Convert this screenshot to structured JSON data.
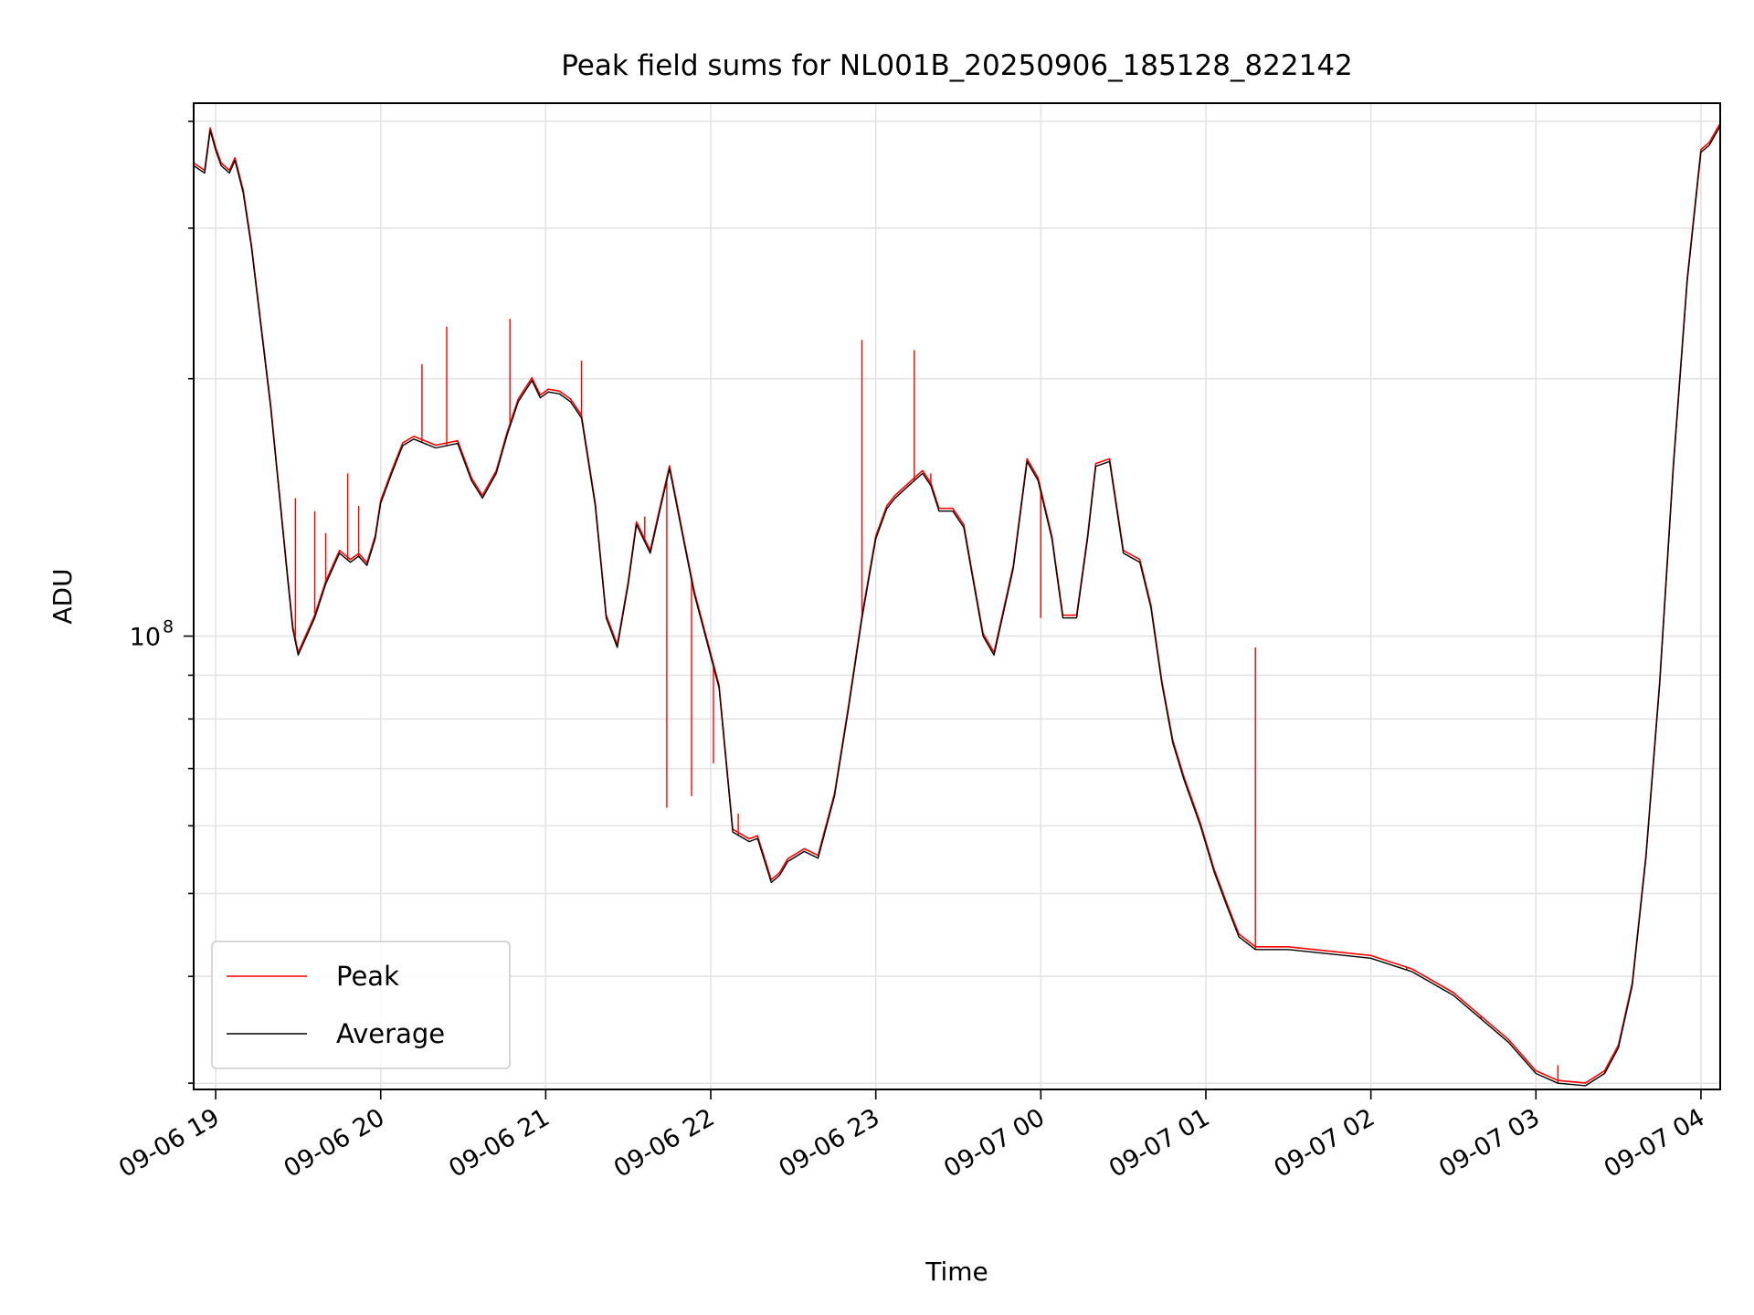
{
  "chart_data": {
    "type": "line",
    "title": "Peak field sums for NL001B_20250906_185128_822142",
    "xlabel": "Time",
    "ylabel": "ADU",
    "y_scale": "log",
    "x_range_hours": [
      "09-06 18:52",
      "09-07 04:07"
    ],
    "ylim": [
      29500000.0,
      420000000.0
    ],
    "x_ticks": [
      "09-06 19",
      "09-06 20",
      "09-06 21",
      "09-06 22",
      "09-06 23",
      "09-07 00",
      "09-07 01",
      "09-07 02",
      "09-07 03",
      "09-07 04"
    ],
    "y_major_ticks": [
      {
        "value": 100000000.0,
        "label_base": "10",
        "label_exp": "8"
      }
    ],
    "y_minor_ticks": [
      30000000.0,
      40000000.0,
      50000000.0,
      60000000.0,
      70000000.0,
      80000000.0,
      90000000.0,
      200000000.0,
      300000000.0,
      400000000.0
    ],
    "grid": true,
    "legend_position": "lower-left",
    "series": [
      {
        "name": "Peak",
        "color": "#ff0000",
        "note": "tracks Average with narrow upward spikes",
        "spikes": [
          {
            "x": "09-06 19:29",
            "y": 145000000.0
          },
          {
            "x": "09-06 19:36",
            "y": 140000000.0
          },
          {
            "x": "09-06 19:40",
            "y": 132000000.0
          },
          {
            "x": "09-06 19:48",
            "y": 155000000.0
          },
          {
            "x": "09-06 19:52",
            "y": 142000000.0
          },
          {
            "x": "09-06 20:15",
            "y": 208000000.0
          },
          {
            "x": "09-06 20:24",
            "y": 230000000.0
          },
          {
            "x": "09-06 20:47",
            "y": 235000000.0
          },
          {
            "x": "09-06 21:13",
            "y": 210000000.0
          },
          {
            "x": "09-06 21:36",
            "y": 138000000.0
          },
          {
            "x": "09-06 21:44",
            "y": 63000000.0
          },
          {
            "x": "09-06 21:53",
            "y": 65000000.0
          },
          {
            "x": "09-06 22:01",
            "y": 71000000.0
          },
          {
            "x": "09-06 22:10",
            "y": 62000000.0
          },
          {
            "x": "09-06 22:55",
            "y": 222000000.0
          },
          {
            "x": "09-06 23:14",
            "y": 216000000.0
          },
          {
            "x": "09-06 23:20",
            "y": 155000000.0
          },
          {
            "x": "09-07 00:00",
            "y": 105000000.0
          },
          {
            "x": "09-07 01:18",
            "y": 97000000.0
          },
          {
            "x": "09-07 01:31",
            "y": 43000000.0
          },
          {
            "x": "09-07 01:45",
            "y": 42500000.0
          },
          {
            "x": "09-07 02:13",
            "y": 41000000.0
          },
          {
            "x": "09-07 02:40",
            "y": 36000000.0
          },
          {
            "x": "09-07 03:08",
            "y": 31500000.0
          },
          {
            "x": "09-07 03:25",
            "y": 31000000.0
          }
        ]
      },
      {
        "name": "Average",
        "color": "#000000",
        "x": [
          "09-06 18:52",
          "09-06 18:56",
          "09-06 18:58",
          "09-06 19:00",
          "09-06 19:02",
          "09-06 19:05",
          "09-06 19:07",
          "09-06 19:10",
          "09-06 19:13",
          "09-06 19:20",
          "09-06 19:26",
          "09-06 19:28",
          "09-06 19:30",
          "09-06 19:36",
          "09-06 19:40",
          "09-06 19:45",
          "09-06 19:49",
          "09-06 19:52",
          "09-06 19:55",
          "09-06 19:58",
          "09-06 20:00",
          "09-06 20:04",
          "09-06 20:08",
          "09-06 20:12",
          "09-06 20:20",
          "09-06 20:28",
          "09-06 20:33",
          "09-06 20:37",
          "09-06 20:42",
          "09-06 20:46",
          "09-06 20:50",
          "09-06 20:55",
          "09-06 20:58",
          "09-06 21:01",
          "09-06 21:05",
          "09-06 21:09",
          "09-06 21:13",
          "09-06 21:18",
          "09-06 21:22",
          "09-06 21:26",
          "09-06 21:30",
          "09-06 21:33",
          "09-06 21:38",
          "09-06 21:41",
          "09-06 21:45",
          "09-06 21:50",
          "09-06 21:54",
          "09-06 21:57",
          "09-06 22:03",
          "09-06 22:08",
          "09-06 22:14",
          "09-06 22:17",
          "09-06 22:22",
          "09-06 22:25",
          "09-06 22:28",
          "09-06 22:34",
          "09-06 22:39",
          "09-06 22:45",
          "09-06 22:50",
          "09-06 22:55",
          "09-06 23:00",
          "09-06 23:04",
          "09-06 23:07",
          "09-06 23:10",
          "09-06 23:14",
          "09-06 23:17",
          "09-06 23:20",
          "09-06 23:23",
          "09-06 23:28",
          "09-06 23:32",
          "09-06 23:35",
          "09-06 23:39",
          "09-06 23:43",
          "09-06 23:50",
          "09-06 23:55",
          "09-06 23:59",
          "09-07 00:04",
          "09-07 00:08",
          "09-07 00:13",
          "09-07 00:17",
          "09-07 00:20",
          "09-07 00:25",
          "09-07 00:27",
          "09-07 00:30",
          "09-07 00:36",
          "09-07 00:40",
          "09-07 00:44",
          "09-07 00:48",
          "09-07 00:52",
          "09-07 00:58",
          "09-07 01:03",
          "09-07 01:08",
          "09-07 01:12",
          "09-07 01:18",
          "09-07 01:30",
          "09-07 02:00",
          "09-07 02:15",
          "09-07 02:30",
          "09-07 02:50",
          "09-07 03:00",
          "09-07 03:08",
          "09-07 03:18",
          "09-07 03:25",
          "09-07 03:30",
          "09-07 03:35",
          "09-07 03:40",
          "09-07 03:45",
          "09-07 03:50",
          "09-07 03:55",
          "09-07 04:00",
          "09-07 04:03",
          "09-07 04:07"
        ],
        "y": [
          355000000.0,
          348000000.0,
          390000000.0,
          370000000.0,
          355000000.0,
          348000000.0,
          360000000.0,
          330000000.0,
          285000000.0,
          185000000.0,
          118000000.0,
          102000000.0,
          95000000.0,
          105000000.0,
          115000000.0,
          125000000.0,
          122000000.0,
          124000000.0,
          121000000.0,
          130000000.0,
          143000000.0,
          155000000.0,
          167000000.0,
          170000000.0,
          166000000.0,
          168000000.0,
          152000000.0,
          145000000.0,
          155000000.0,
          172000000.0,
          188000000.0,
          199000000.0,
          190000000.0,
          193000000.0,
          192000000.0,
          188000000.0,
          180000000.0,
          142000000.0,
          105000000.0,
          97000000.0,
          115000000.0,
          135000000.0,
          125000000.0,
          138000000.0,
          157000000.0,
          130000000.0,
          112000000.0,
          103000000.0,
          87000000.0,
          59000000.0,
          57500000.0,
          58000000.0,
          51500000.0,
          52500000.0,
          54500000.0,
          56000000.0,
          55000000.0,
          65000000.0,
          82000000.0,
          105000000.0,
          130000000.0,
          141000000.0,
          145000000.0,
          148000000.0,
          152000000.0,
          155000000.0,
          150000000.0,
          140000000.0,
          140000000.0,
          134000000.0,
          118000000.0,
          100000000.0,
          95000000.0,
          120000000.0,
          160000000.0,
          152000000.0,
          130000000.0,
          105000000.0,
          105000000.0,
          130000000.0,
          158000000.0,
          160000000.0,
          145000000.0,
          125000000.0,
          122000000.0,
          108000000.0,
          88000000.0,
          75000000.0,
          68000000.0,
          60000000.0,
          53000000.0,
          48000000.0,
          44500000.0,
          43000000.0,
          43000000.0,
          42000000.0,
          40500000.0,
          38000000.0,
          33500000.0,
          30800000.0,
          30000000.0,
          29800000.0,
          30800000.0,
          33000000.0,
          39000000.0,
          55000000.0,
          88000000.0,
          158000000.0,
          260000000.0,
          368000000.0,
          375000000.0,
          395000000.0
        ]
      }
    ]
  }
}
